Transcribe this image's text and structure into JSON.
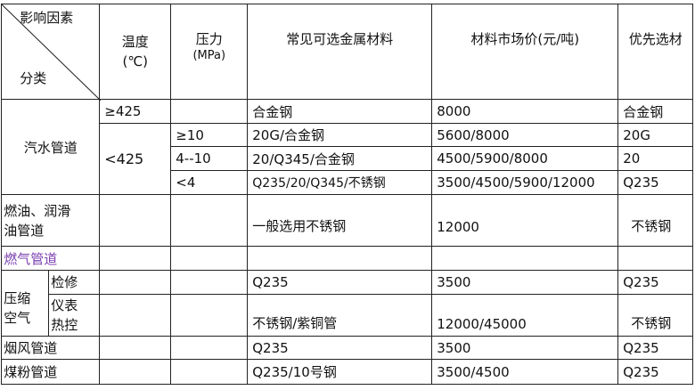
{
  "header": {
    "corner_top": "影响因素",
    "corner_bottom": "分类",
    "temperature": "温度",
    "temperature_unit": "(℃)",
    "pressure": "压力",
    "pressure_unit": "(MPa)",
    "materials": "常见可选金属材料",
    "price": "材料市场价(元/吨)",
    "preferred": "优先选材"
  },
  "steam": {
    "category": "汽水管道",
    "rows": [
      {
        "temp": "≥425",
        "pressure": "",
        "materials": "合金钢",
        "price": "8000",
        "preferred": "合金钢"
      },
      {
        "temp": "<425",
        "pressure": "≥10",
        "materials": "20G/合金钢",
        "price": "5600/8000",
        "preferred": "20G"
      },
      {
        "pressure": "4--10",
        "materials": "20/Q345/合金钢",
        "price": "4500/5900/8000",
        "preferred": "20"
      },
      {
        "pressure": "<4",
        "materials": "Q235/20/Q345/不锈钢",
        "price": "3500/4500/5900/12000",
        "preferred": "Q235"
      }
    ]
  },
  "fuel_oil": {
    "category_line1": "燃油、润滑",
    "category_line2": "油管道",
    "materials": "一般选用不锈钢",
    "price": "12000",
    "preferred": "不锈钢"
  },
  "gas": {
    "category": "燃气管道",
    "color": "#7a3fb0"
  },
  "compressed_air": {
    "category_line1": "压缩",
    "category_line2": "空气",
    "maintenance": {
      "label": "检修",
      "materials": "Q235",
      "price": "3500",
      "preferred": "Q235"
    },
    "instrument": {
      "label_line1": "仪表",
      "label_line2": "热控",
      "materials": "不锈钢/紫铜管",
      "price": "12000/45000",
      "preferred": "不锈钢"
    }
  },
  "flue": {
    "category": "烟风管道",
    "materials": "Q235",
    "price": "3500",
    "preferred": "Q235"
  },
  "coal": {
    "category": "煤粉管道",
    "materials": "Q235/10号钢",
    "price": "3500/4500",
    "preferred": "Q235"
  }
}
